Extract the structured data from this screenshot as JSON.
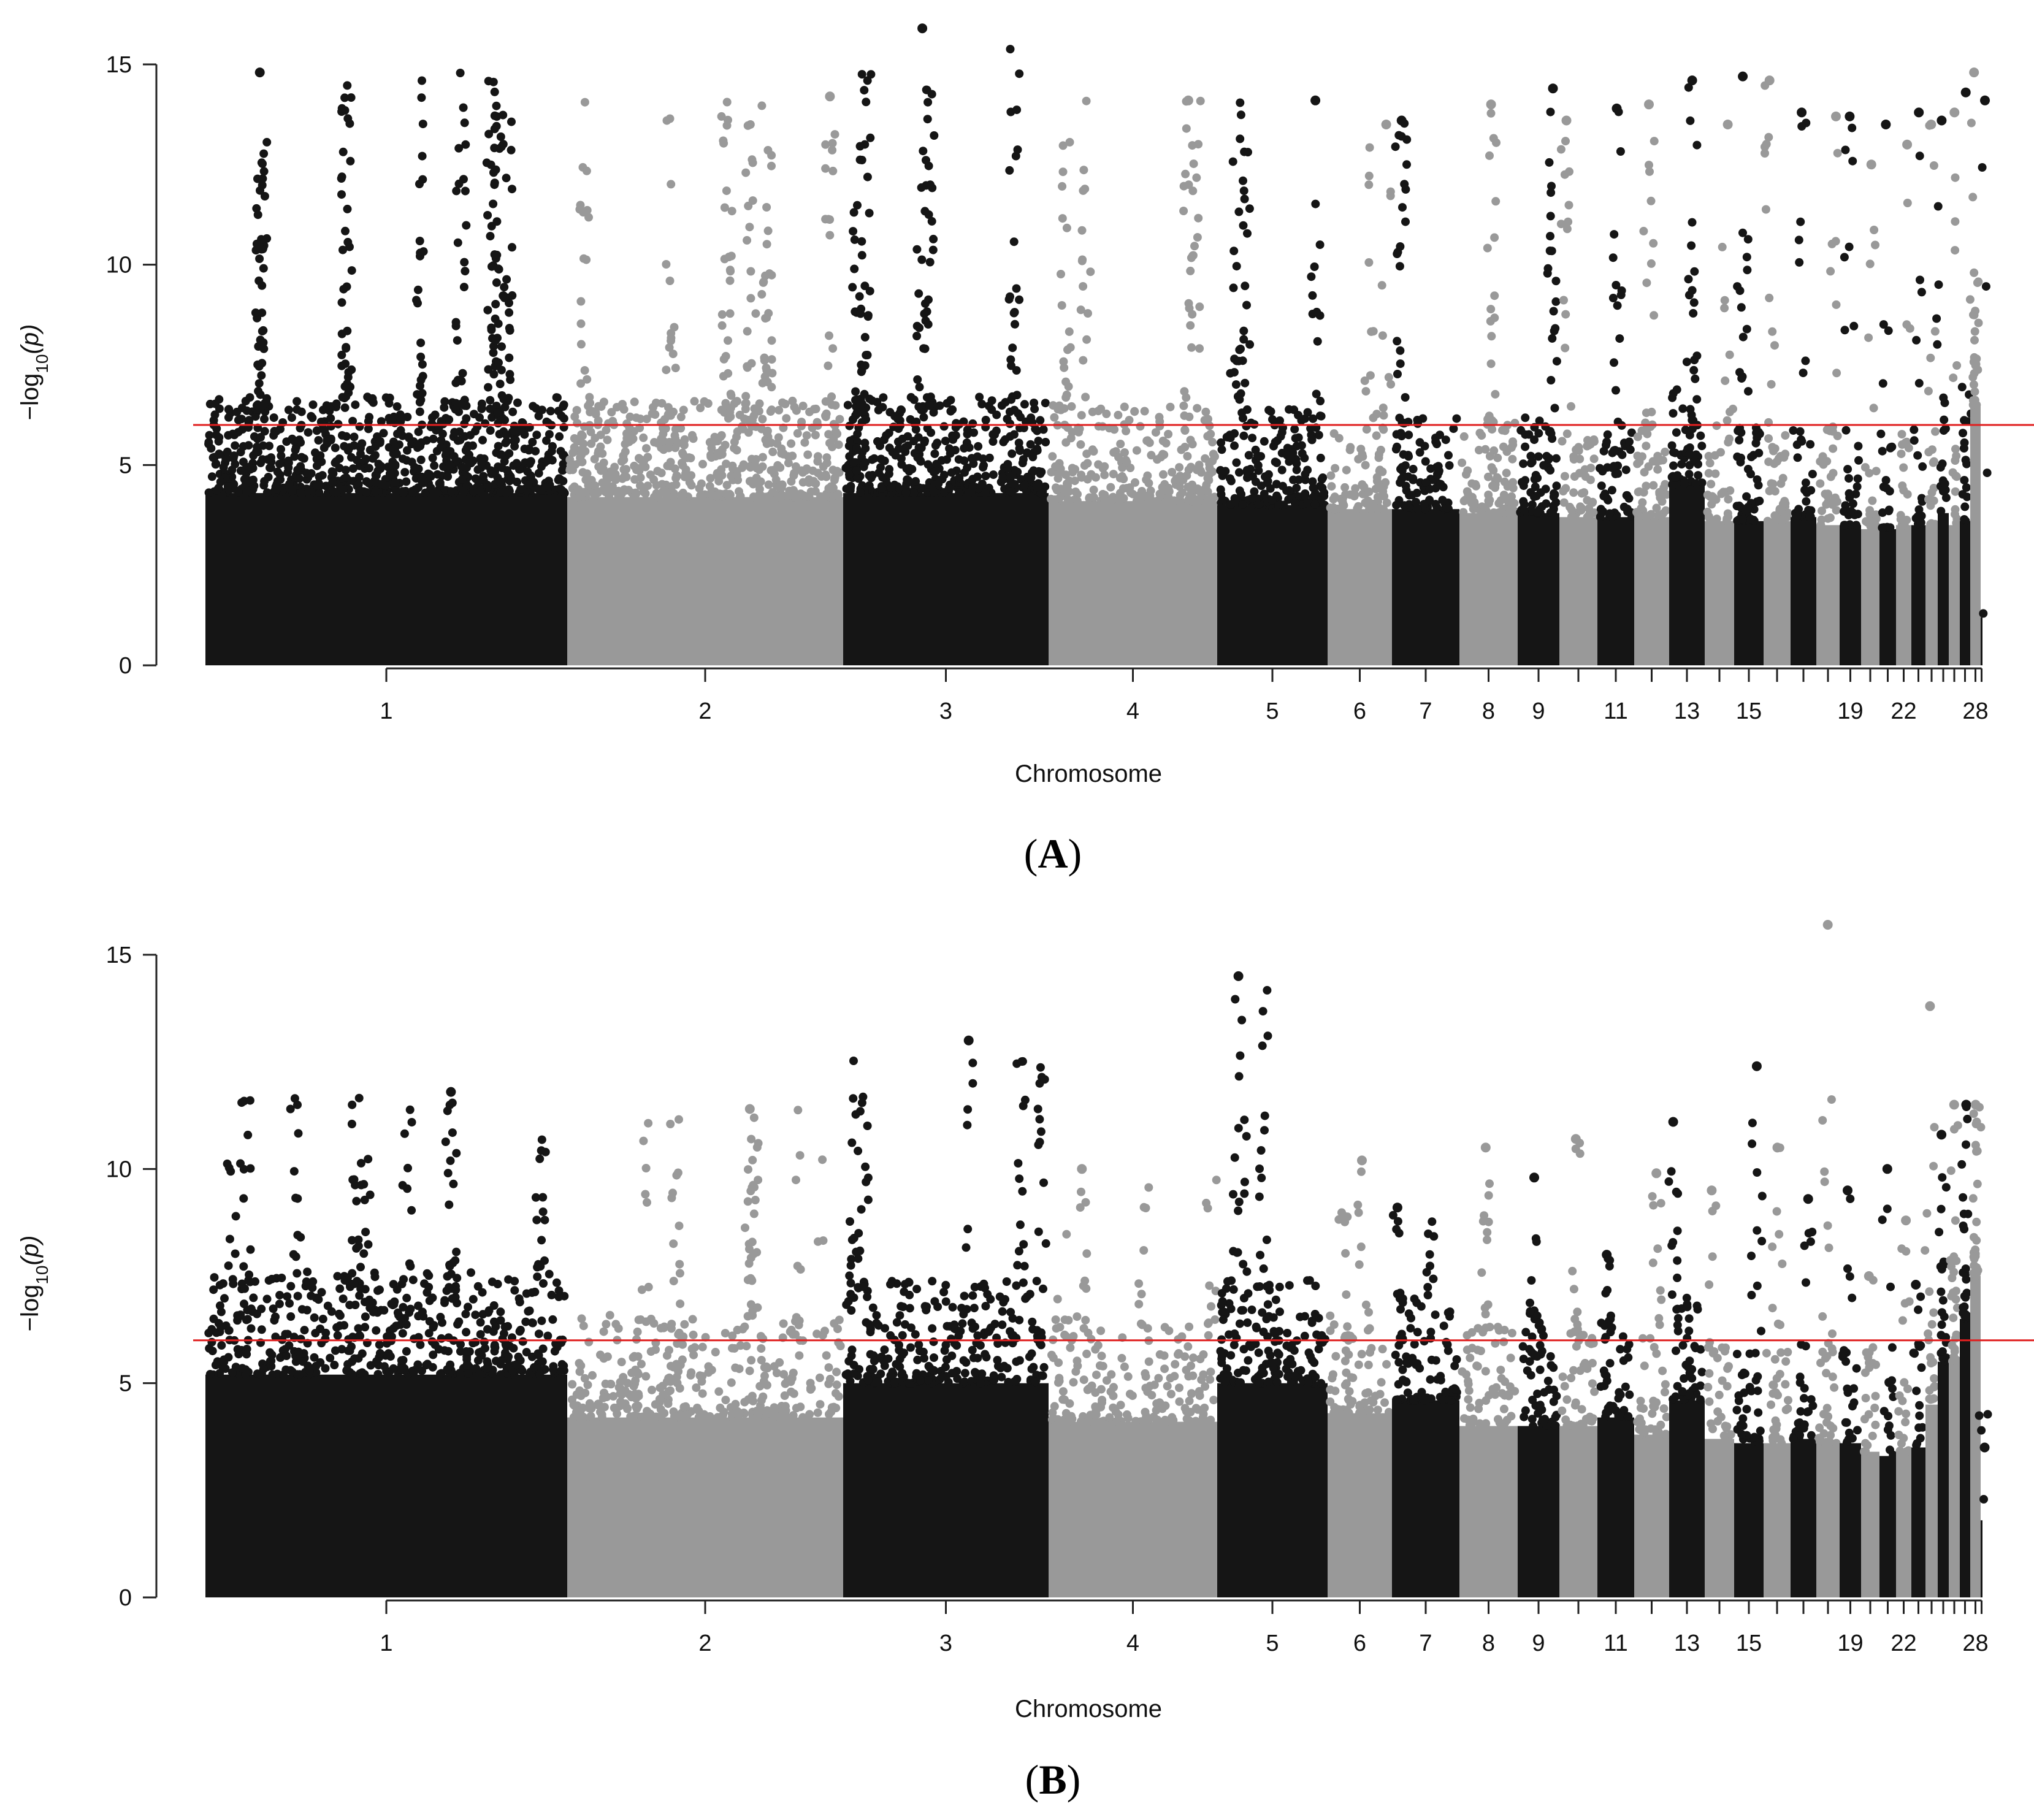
{
  "colors": {
    "odd_chromosome": "#151515",
    "even_chromosome": "#999999",
    "threshold": "#e02020",
    "axis": "#222222"
  },
  "chart_data": [
    {
      "panel": "A",
      "type": "scatter",
      "xlabel": "Chromosome",
      "ylabel_parts": {
        "prefix": "−log",
        "subscript": "10",
        "suffix": "(p)"
      },
      "ylim": [
        0,
        15
      ],
      "yticks": [
        0,
        5,
        10,
        15
      ],
      "threshold": 6,
      "chromosome_labels": [
        "1",
        "2",
        "3",
        "4",
        "5",
        "6",
        "7",
        "8",
        "9",
        "11",
        "13",
        "15",
        "19",
        "22",
        "28"
      ],
      "peak_max": [
        14.8,
        14.2,
        15.9,
        14.1,
        14.1,
        13.5,
        13.6,
        14.0,
        14.4,
        13.6,
        13.9,
        14.0,
        14.6,
        13.5,
        14.7,
        14.6,
        13.8,
        13.7,
        13.7,
        12.5,
        13.5,
        13.0,
        13.8,
        13.5,
        13.6,
        13.8,
        14.3,
        14.8,
        14.1
      ],
      "base_max": [
        4.3,
        4.2,
        4.3,
        4.1,
        4.0,
        3.9,
        3.9,
        3.8,
        3.8,
        3.7,
        3.7,
        3.7,
        4.5,
        3.6,
        3.6,
        3.6,
        3.7,
        3.5,
        3.5,
        3.4,
        3.4,
        3.5,
        3.5,
        3.5,
        3.8,
        3.5,
        3.6,
        6.5,
        1.2
      ],
      "density": [
        1.0,
        0.8,
        0.9,
        0.6,
        0.7,
        0.4,
        0.5,
        0.5,
        0.7,
        0.4,
        0.5,
        0.5,
        0.7,
        0.3,
        0.6,
        0.5,
        0.3,
        0.4,
        0.3,
        0.2,
        0.2,
        0.2,
        0.3,
        0.3,
        0.4,
        0.3,
        0.4,
        0.9,
        0.05
      ]
    },
    {
      "panel": "B",
      "type": "scatter",
      "xlabel": "Chromosome",
      "ylabel_parts": {
        "prefix": "−log",
        "subscript": "10",
        "suffix": "(p)"
      },
      "ylim": [
        0,
        15
      ],
      "yticks": [
        0,
        5,
        10,
        15
      ],
      "threshold": 6,
      "chromosome_labels": [
        "1",
        "2",
        "3",
        "4",
        "5",
        "6",
        "7",
        "8",
        "9",
        "11",
        "13",
        "15",
        "19",
        "22",
        "28"
      ],
      "peak_max": [
        11.8,
        11.4,
        13.0,
        10.0,
        14.5,
        10.2,
        9.1,
        10.5,
        9.8,
        10.7,
        8.0,
        9.9,
        11.1,
        9.5,
        12.4,
        10.5,
        9.3,
        15.7,
        9.5,
        7.5,
        10.0,
        8.8,
        7.3,
        13.8,
        10.8,
        11.5,
        11.5,
        11.5,
        3.5
      ],
      "base_max": [
        5.2,
        4.2,
        5.0,
        4.1,
        5.0,
        4.3,
        4.6,
        4.0,
        4.0,
        4.0,
        4.2,
        3.8,
        4.6,
        3.7,
        3.6,
        3.6,
        3.7,
        3.6,
        3.6,
        3.4,
        3.3,
        3.4,
        3.5,
        4.5,
        5.5,
        5.5,
        6.5,
        7.5,
        1.8
      ],
      "density": [
        0.5,
        0.4,
        0.5,
        0.3,
        0.5,
        0.3,
        0.4,
        0.3,
        0.4,
        0.3,
        0.3,
        0.3,
        0.4,
        0.2,
        0.4,
        0.3,
        0.2,
        0.4,
        0.2,
        0.2,
        0.1,
        0.2,
        0.2,
        0.4,
        0.6,
        0.7,
        0.7,
        0.9,
        0.05
      ]
    }
  ]
}
